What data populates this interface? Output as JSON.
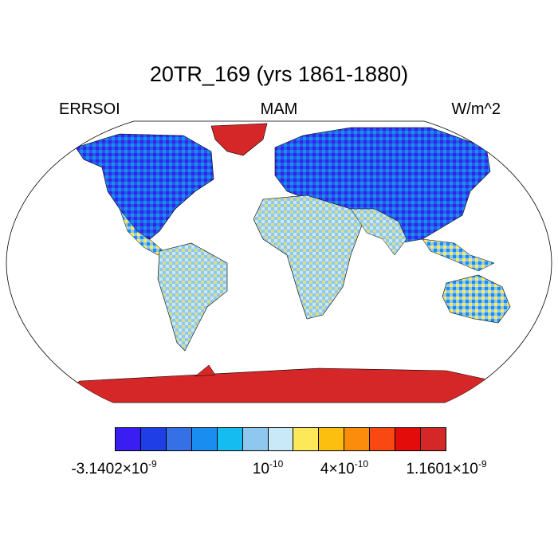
{
  "figure": {
    "title": "20TR_169 (yrs 1861-1880)",
    "left_label": "ERRSOI",
    "center_label": "MAM",
    "right_label": "W/m^2"
  },
  "map": {
    "projection": "Robinson",
    "description_regions": [
      {
        "name": "greenland",
        "color": "#d62728"
      },
      {
        "name": "antarctica",
        "color": "#d62728"
      }
    ]
  },
  "colorbar": {
    "colors": [
      "#3a1df0",
      "#1f3ee6",
      "#3570e6",
      "#1a8ef0",
      "#14bcf0",
      "#8ec8ee",
      "#c9e8f8",
      "#fde85a",
      "#fcbf0f",
      "#fb8c0c",
      "#f94812",
      "#e40b0b",
      "#d62728"
    ],
    "labels": [
      {
        "mantissa": "-3.1402",
        "exp": "-9"
      },
      {
        "mantissa": "",
        "base": "10",
        "exp": "-10"
      },
      {
        "mantissa": "4",
        "exp": "-10"
      },
      {
        "mantissa": "1.1601",
        "exp": "-9"
      }
    ]
  }
}
